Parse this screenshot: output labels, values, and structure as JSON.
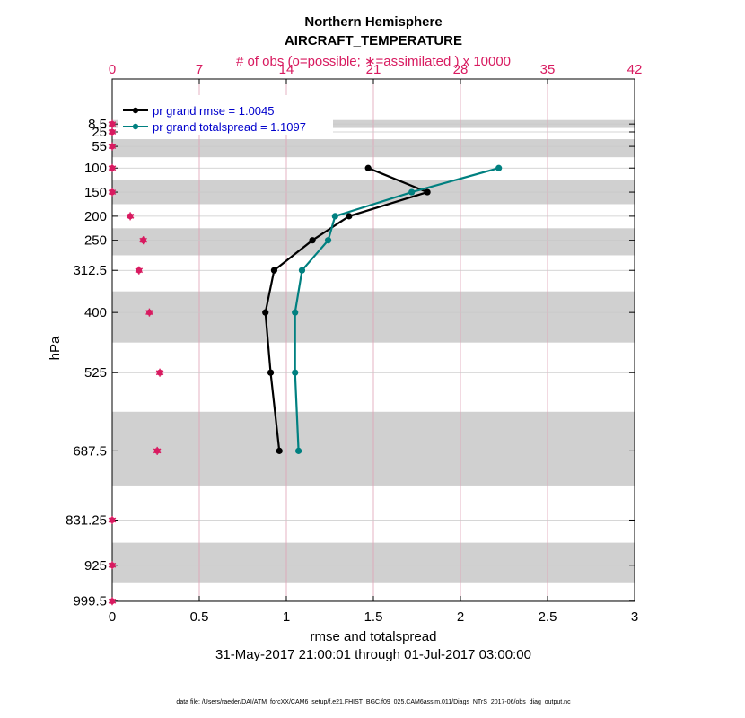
{
  "chart_data": {
    "type": "line",
    "title": "Northern Hemisphere",
    "subtitle": "AIRCRAFT_TEMPERATURE",
    "top_axis_label": "# of obs (o=possible; ∗=assimilated ) x 10000",
    "xlabel": "rmse and totalspread",
    "ylabel": "hPa",
    "date_range": "31-May-2017 21:00:01 through 01-Jul-2017 03:00:00",
    "footer": "data file: /Users/raeder/DAI/ATM_forcXX/CAM6_setup/f.e21.FHIST_BGC.f09_025.CAM6assim.011/Diags_NTrS_2017-06/obs_diag_output.nc",
    "xlim": [
      0,
      3
    ],
    "xticks": [
      "0",
      "0.5",
      "1",
      "1.5",
      "2",
      "2.5",
      "3"
    ],
    "xtick_values": [
      0,
      0.5,
      1,
      1.5,
      2,
      2.5,
      3
    ],
    "top_xlim": [
      0,
      42
    ],
    "top_xticks": [
      "0",
      "7",
      "14",
      "21",
      "28",
      "35",
      "42"
    ],
    "top_xtick_values": [
      0,
      7,
      14,
      21,
      28,
      35,
      42
    ],
    "levels": [
      8.5,
      25,
      55,
      100,
      150,
      200,
      250,
      312.5,
      400,
      525,
      687.5,
      831.25,
      925,
      999.5
    ],
    "level_labels": [
      "8.5",
      "25",
      "55",
      "100",
      "150",
      "200",
      "250",
      "312.5",
      "400",
      "525",
      "687.5",
      "831.25",
      "925",
      "999.5"
    ],
    "grid": true,
    "legend_position": "top-left",
    "series": [
      {
        "name": "pr grand rmse = 1.0045",
        "color": "#000000",
        "levels": [
          100,
          150,
          200,
          250,
          312.5,
          400,
          525,
          687.5
        ],
        "values": [
          1.47,
          1.81,
          1.36,
          1.15,
          0.93,
          0.88,
          0.91,
          0.96
        ]
      },
      {
        "name": "pr grand totalspread = 1.1097",
        "color": "#008080",
        "levels": [
          100,
          150,
          200,
          250,
          312.5,
          400,
          525,
          687.5
        ],
        "values": [
          2.22,
          1.72,
          1.28,
          1.24,
          1.09,
          1.05,
          1.05,
          1.07
        ]
      }
    ],
    "obs_count": {
      "color": "#d81b60",
      "levels": [
        8.5,
        25,
        55,
        100,
        150,
        200,
        250,
        312.5,
        400,
        525,
        687.5,
        831.25,
        925,
        999.5
      ],
      "possible": [
        0,
        0,
        0,
        0,
        0,
        1.45,
        2.5,
        2.15,
        2.99,
        3.83,
        3.62,
        0,
        0,
        0
      ],
      "assimilated": [
        0,
        0,
        0,
        0,
        0,
        1.45,
        2.5,
        2.15,
        2.99,
        3.83,
        3.62,
        0,
        0,
        0
      ]
    }
  }
}
